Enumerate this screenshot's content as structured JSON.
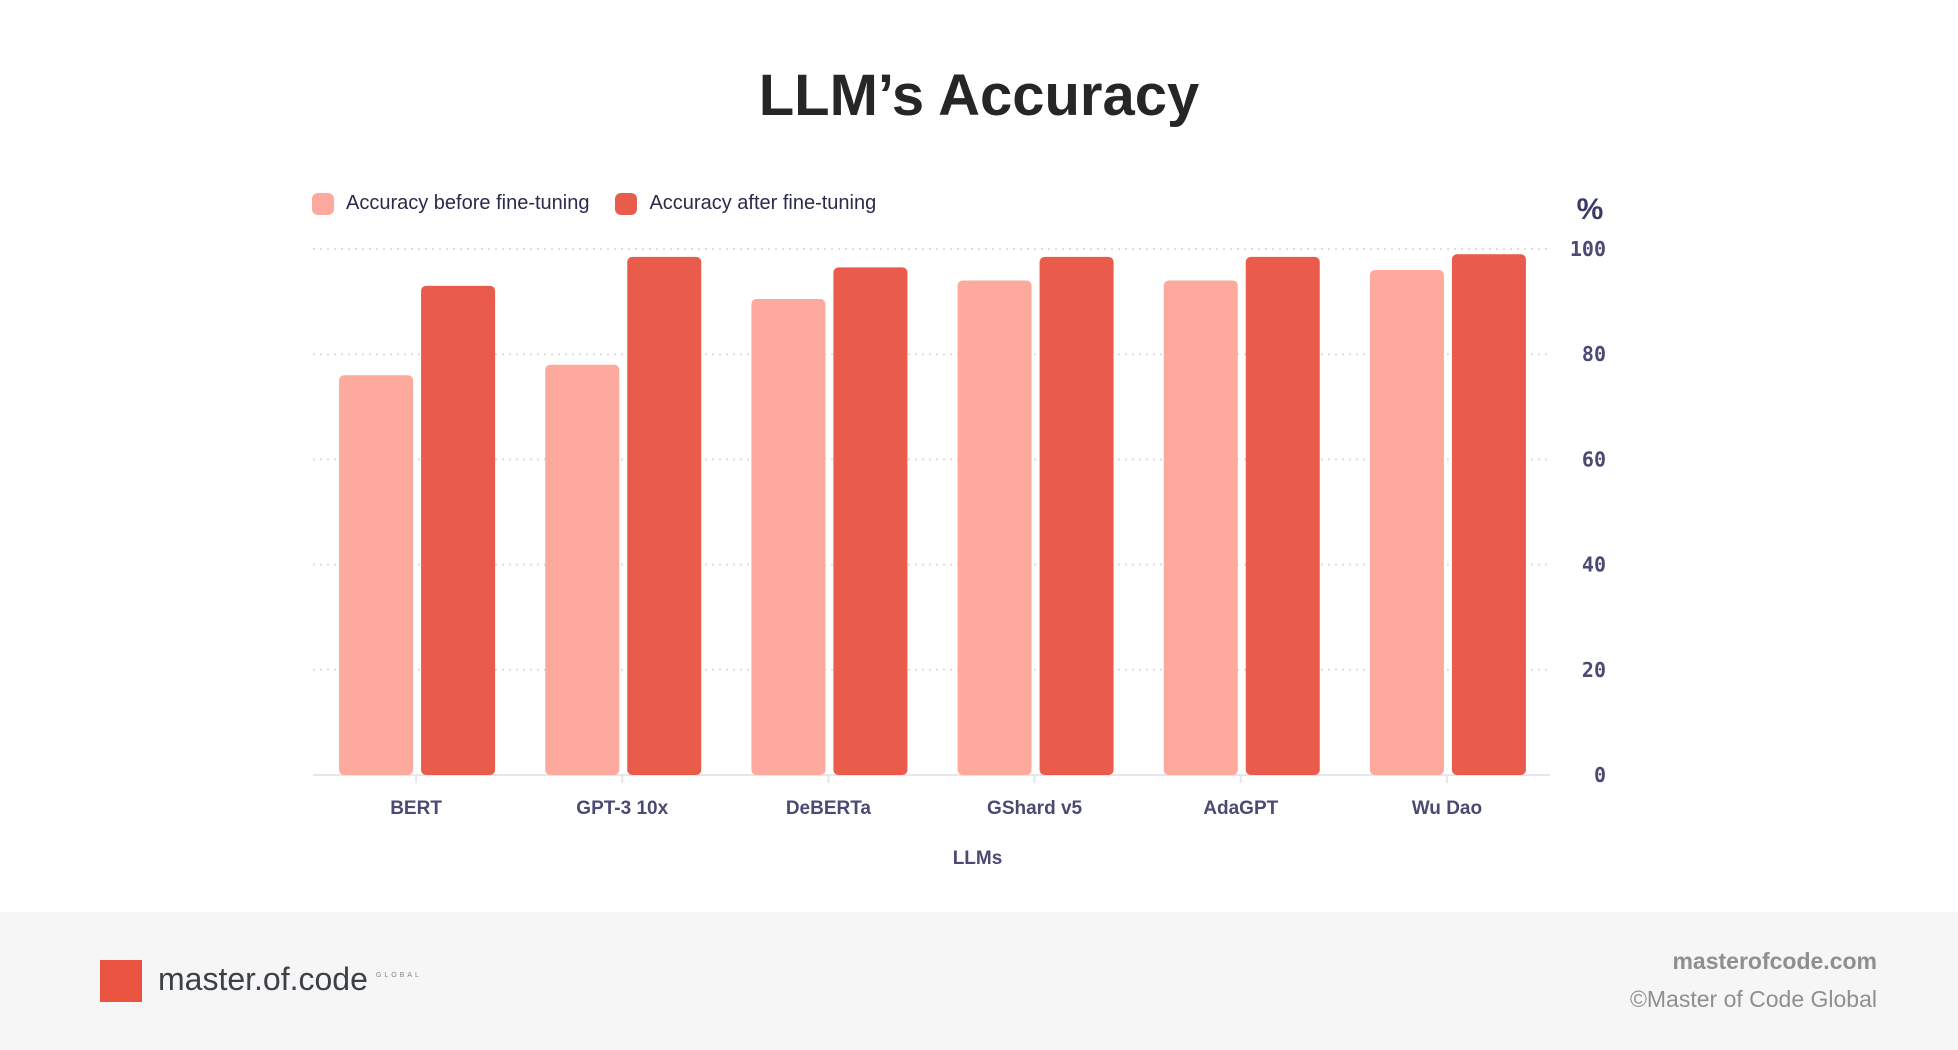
{
  "chart_data": {
    "type": "bar",
    "title": "LLM’s Accuracy",
    "xlabel": "LLMs",
    "ylabel": "%",
    "ylim": [
      0,
      100
    ],
    "yticks": [
      0,
      20,
      40,
      60,
      80,
      100
    ],
    "grid": true,
    "y_axis_side": "right",
    "legend_placement": "top-left",
    "categories": [
      "BERT",
      "GPT-3 10x",
      "DeBERTa",
      "GShard v5",
      "AdaGPT",
      "Wu Dao"
    ],
    "series": [
      {
        "name": "Accuracy before fine-tuning",
        "color": "#fea99d",
        "values": [
          76,
          78,
          90.5,
          94,
          94,
          96
        ]
      },
      {
        "name": "Accuracy after fine-tuning",
        "color": "#e95c4c",
        "values": [
          93,
          98.5,
          96.5,
          98.5,
          98.5,
          99
        ]
      }
    ]
  },
  "footer": {
    "brand": "master.of.code",
    "brand_sub": "GLOBAL",
    "site": "masterofcode.com",
    "copyright": "©Master of Code Global"
  }
}
